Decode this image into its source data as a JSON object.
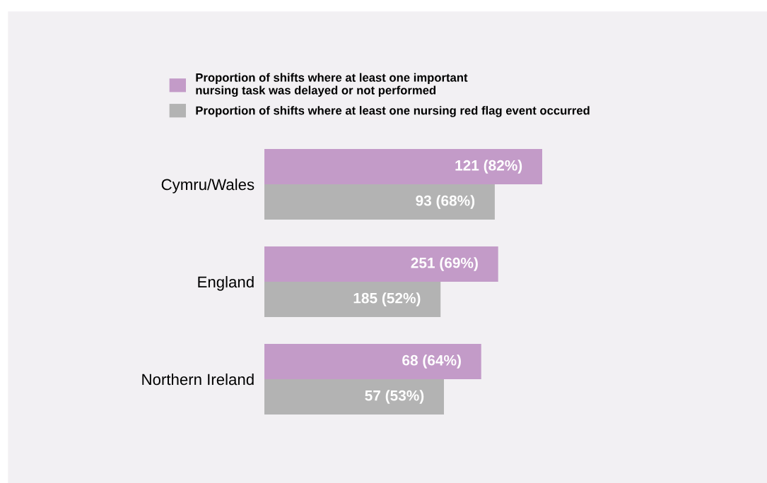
{
  "chart_data": {
    "type": "bar",
    "orientation": "horizontal",
    "categories": [
      "Cymru/Wales",
      "England",
      "Northern Ireland"
    ],
    "tick_labels": "y",
    "legend": "top",
    "series": [
      {
        "name": "Proportion of shifts where at least one important\nnursing task was delayed or not performed",
        "color": "#c39bc8",
        "values": [
          82,
          69,
          64
        ],
        "value_labels": [
          "121 (82%)",
          "251 (69%)",
          "68 (64%)"
        ]
      },
      {
        "name": "Proportion of shifts where at least one nursing red flag event occurred",
        "color": "#b3b3b3",
        "values": [
          68,
          52,
          53
        ],
        "value_labels": [
          "93 (68%)",
          "185 (52%)",
          "57 (53%)"
        ]
      }
    ]
  }
}
